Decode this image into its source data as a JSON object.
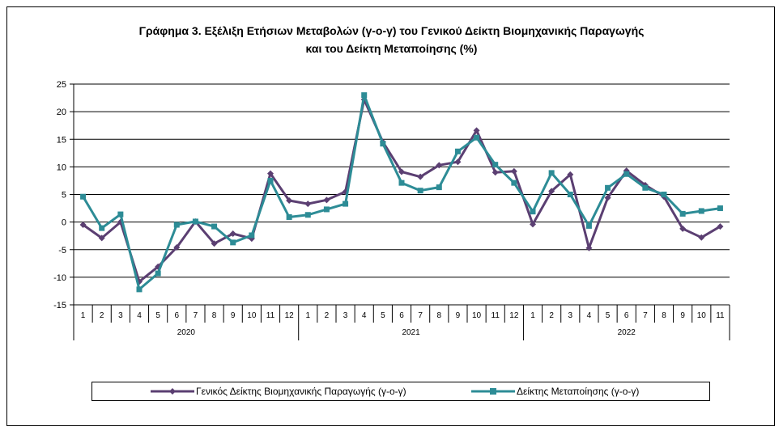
{
  "chart_data": {
    "type": "line",
    "title_lines": [
      "Γράφημα 3. Εξέλιξη Ετήσιων Μεταβολών (γ-ο-γ) του Γενικού Δείκτη Βιομηχανικής Παραγωγής",
      "και του Δείκτη Μεταποίησης (%)"
    ],
    "ylim": [
      -15,
      25
    ],
    "yticks": [
      -15,
      -10,
      -5,
      0,
      5,
      10,
      15,
      20,
      25
    ],
    "grid": true,
    "legend_position": "bottom",
    "years": [
      {
        "label": "2020",
        "months": [
          "1",
          "2",
          "3",
          "4",
          "5",
          "6",
          "7",
          "8",
          "9",
          "10",
          "11",
          "12"
        ]
      },
      {
        "label": "2021",
        "months": [
          "1",
          "2",
          "3",
          "4",
          "5",
          "6",
          "7",
          "8",
          "9",
          "10",
          "11",
          "12"
        ]
      },
      {
        "label": "2022",
        "months": [
          "1",
          "2",
          "3",
          "4",
          "5",
          "6",
          "7",
          "8",
          "9",
          "10",
          "11"
        ]
      }
    ],
    "series": [
      {
        "name": "Γενικός Δείκτης Βιομηχανικής Παραγωγής (γ-ο-γ)",
        "color": "#5b3f72",
        "marker": "diamond",
        "values": [
          -0.5,
          -2.9,
          0.0,
          -10.8,
          -8.1,
          -4.6,
          0.1,
          -3.9,
          -2.1,
          -3.0,
          8.8,
          3.9,
          3.3,
          4.0,
          5.5,
          22.2,
          14.5,
          9.1,
          8.2,
          10.3,
          10.9,
          16.6,
          9.0,
          9.2,
          -0.4,
          5.6,
          8.6,
          -4.7,
          4.4,
          9.3,
          6.7,
          4.6,
          -1.2,
          -2.8,
          -0.8
        ]
      },
      {
        "name": "Δείκτης Μεταποίησης (γ-ο-γ)",
        "color": "#2d8c96",
        "marker": "square",
        "values": [
          4.6,
          -1.1,
          1.4,
          -12.2,
          -9.3,
          -0.5,
          0.1,
          -0.8,
          -3.7,
          -2.4,
          7.5,
          0.9,
          1.3,
          2.3,
          3.3,
          23.0,
          14.2,
          7.1,
          5.7,
          6.3,
          12.8,
          15.3,
          10.4,
          7.1,
          1.9,
          8.9,
          5.0,
          -0.7,
          6.2,
          8.7,
          6.2,
          5.0,
          1.5,
          2.0,
          2.5
        ]
      }
    ]
  }
}
